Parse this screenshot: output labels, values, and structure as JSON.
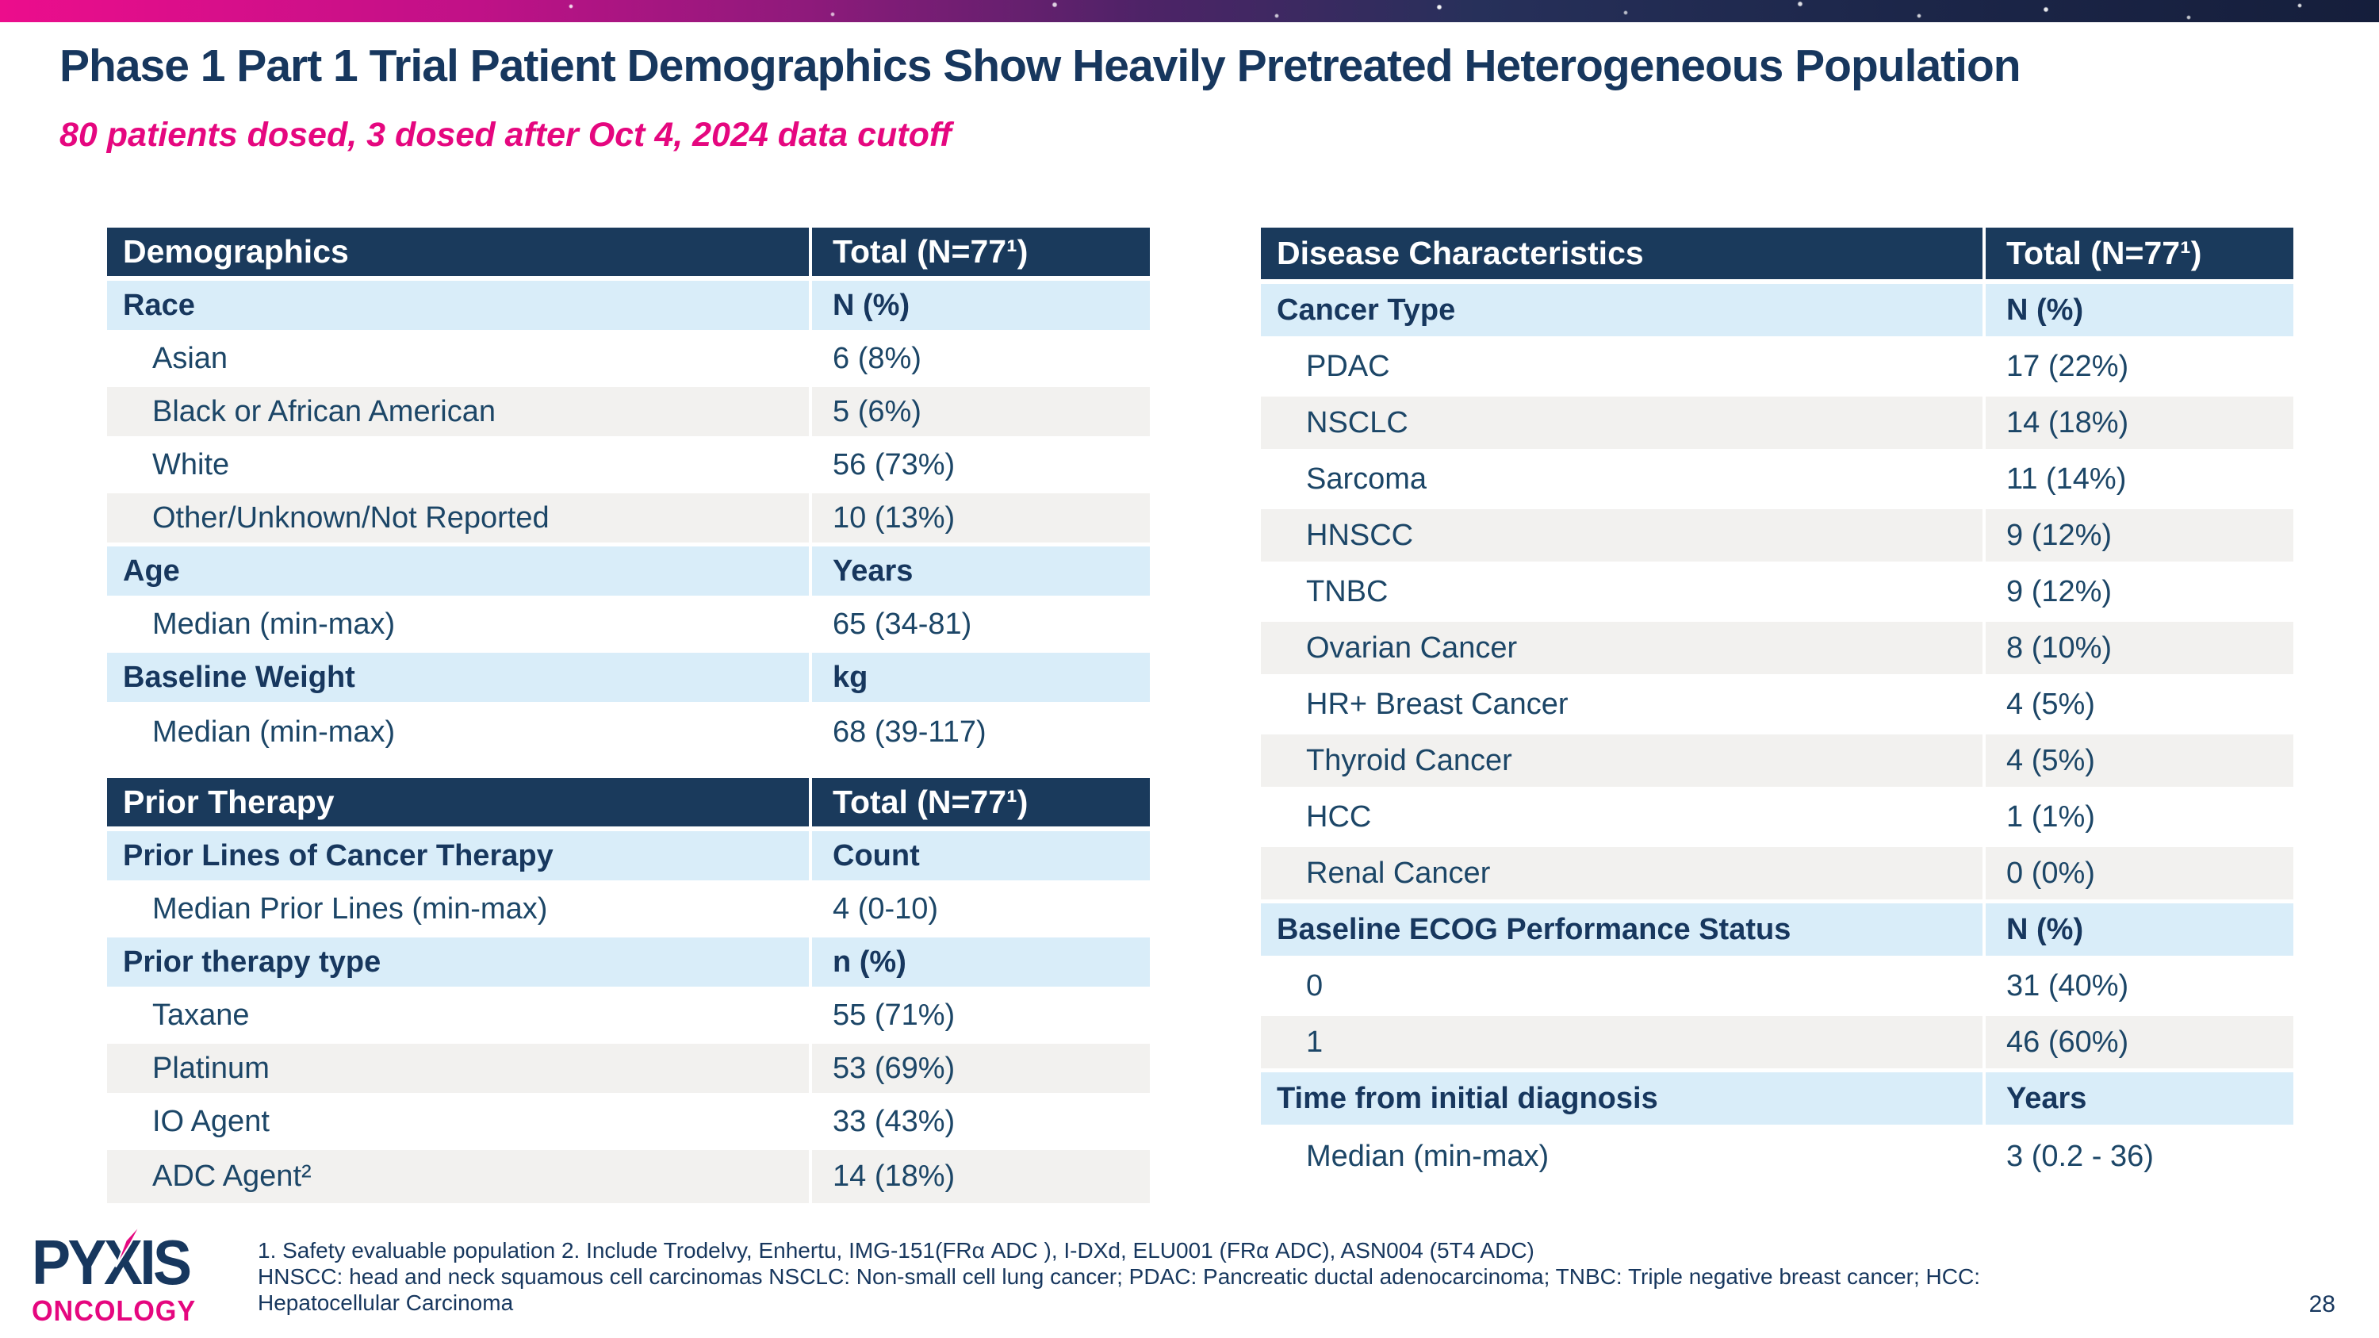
{
  "slide": {
    "title": "Phase 1 Part 1 Trial Patient Demographics Show Heavily Pretreated Heterogeneous Population",
    "subtitle": "80 patients dosed, 3 dosed after Oct 4, 2024 data cutoff",
    "page_number": "28"
  },
  "colors": {
    "header_bg": "#1A3A5C",
    "subheader_bg": "#D9EDF9",
    "row_alt_bg": "#F2F1EF",
    "navy": "#17375E",
    "body_text_navy": "#1C4667",
    "brand_magenta": "#E5077F",
    "topbar_gradient_left": "#EC0D8C",
    "topbar_gradient_right": "#151E3B"
  },
  "tables": {
    "demographics": {
      "header": [
        "Demographics",
        "Total (N=77¹)"
      ],
      "rows": [
        {
          "type": "subheader",
          "label": "Race",
          "value": "N (%)"
        },
        {
          "type": "data",
          "label": "Asian",
          "value": "6 (8%)"
        },
        {
          "type": "data",
          "label": "Black or African American",
          "value": "5 (6%)"
        },
        {
          "type": "data",
          "label": "White",
          "value": "56 (73%)"
        },
        {
          "type": "data",
          "label": "Other/Unknown/Not Reported",
          "value": "10 (13%)"
        },
        {
          "type": "subheader",
          "label": "Age",
          "value": "Years"
        },
        {
          "type": "data",
          "label": "Median (min-max)",
          "value": "65 (34-81)"
        },
        {
          "type": "subheader",
          "label": "Baseline Weight",
          "value": "kg"
        },
        {
          "type": "data",
          "label": "Median (min-max)",
          "value": "68 (39-117)"
        }
      ]
    },
    "prior_therapy": {
      "header": [
        "Prior Therapy",
        "Total (N=77¹)"
      ],
      "rows": [
        {
          "type": "subheader",
          "label": "Prior Lines of Cancer Therapy",
          "value": "Count"
        },
        {
          "type": "data",
          "label": "Median Prior Lines (min-max)",
          "value": "4 (0-10)"
        },
        {
          "type": "subheader",
          "label": "Prior therapy type",
          "value": "n (%)"
        },
        {
          "type": "data",
          "label": "Taxane",
          "value": "55 (71%)"
        },
        {
          "type": "data",
          "label": "Platinum",
          "value": "53 (69%)"
        },
        {
          "type": "data",
          "label": "IO Agent",
          "value": "33 (43%)"
        },
        {
          "type": "data",
          "label": "ADC Agent²",
          "value": "14 (18%)"
        }
      ]
    },
    "disease_characteristics": {
      "header": [
        "Disease Characteristics",
        "Total (N=77¹)"
      ],
      "rows": [
        {
          "type": "subheader",
          "label": "Cancer Type",
          "value": "N (%)"
        },
        {
          "type": "data",
          "label": "PDAC",
          "value": "17 (22%)"
        },
        {
          "type": "data",
          "label": "NSCLC",
          "value": "14 (18%)"
        },
        {
          "type": "data",
          "label": "Sarcoma",
          "value": "11 (14%)"
        },
        {
          "type": "data",
          "label": "HNSCC",
          "value": "9 (12%)"
        },
        {
          "type": "data",
          "label": "TNBC",
          "value": "9 (12%)"
        },
        {
          "type": "data",
          "label": "Ovarian Cancer",
          "value": "8 (10%)"
        },
        {
          "type": "data",
          "label": "HR+ Breast Cancer",
          "value": "4 (5%)"
        },
        {
          "type": "data",
          "label": "Thyroid Cancer",
          "value": "4 (5%)"
        },
        {
          "type": "data",
          "label": "HCC",
          "value": "1 (1%)"
        },
        {
          "type": "data",
          "label": "Renal Cancer",
          "value": "0 (0%)"
        },
        {
          "type": "subheader",
          "label": "Baseline ECOG Performance Status",
          "value": "N (%)"
        },
        {
          "type": "data",
          "label": "0",
          "value": "31 (40%)"
        },
        {
          "type": "data",
          "label": "1",
          "value": "46 (60%)"
        },
        {
          "type": "subheader",
          "label": "Time from initial diagnosis",
          "value": "Years"
        },
        {
          "type": "data",
          "label": "Median (min-max)",
          "value": "3 (0.2 - 36)"
        }
      ]
    }
  },
  "footer": {
    "logo": {
      "part1": "PY",
      "part2": "X",
      "part3": "IS",
      "tagline": "ONCOLOGY"
    },
    "footnotes": [
      "1. Safety evaluable population 2. Include Trodelvy, Enhertu, IMG-151(FRα ADC ), I-DXd, ELU001 (FRα ADC), ASN004 (5T4 ADC)",
      "HNSCC: head and neck squamous cell carcinomas NSCLC: Non-small cell lung cancer; PDAC: Pancreatic ductal adenocarcinoma; TNBC: Triple negative breast cancer; HCC:",
      "Hepatocellular Carcinoma"
    ]
  }
}
